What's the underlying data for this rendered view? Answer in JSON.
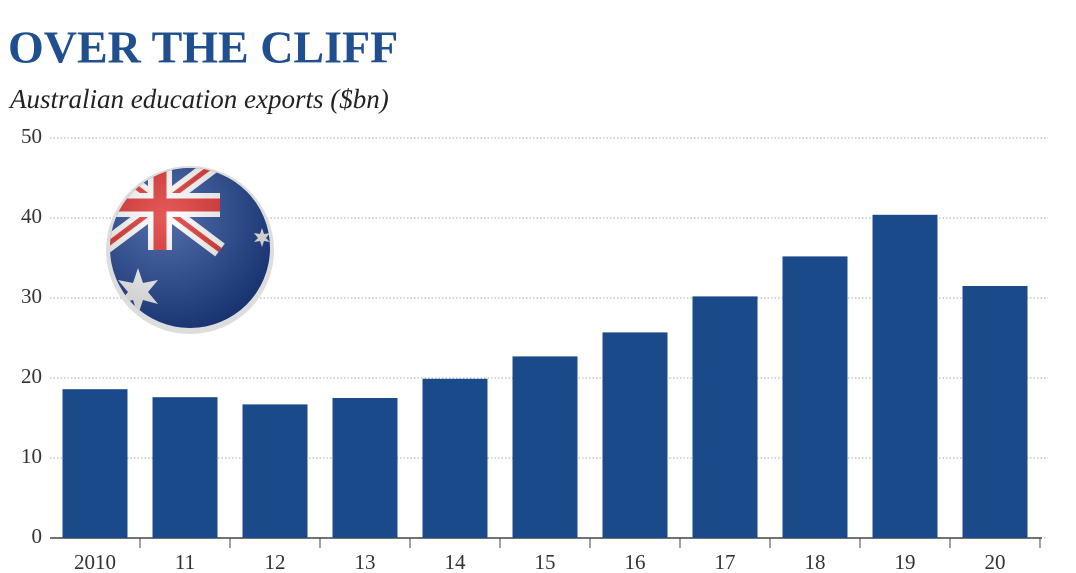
{
  "chart_data": {
    "type": "bar",
    "title": "OVER THE CLIFF",
    "subtitle": "Australian education exports ($bn)",
    "categories": [
      "2010",
      "11",
      "12",
      "13",
      "14",
      "15",
      "16",
      "17",
      "18",
      "19",
      "20"
    ],
    "values": [
      18.6,
      17.6,
      16.7,
      17.5,
      19.9,
      22.7,
      25.7,
      30.2,
      35.2,
      40.4,
      31.5
    ],
    "color": "#1b4a8a",
    "ylim": [
      0,
      50
    ],
    "yticks": [
      0,
      10,
      20,
      30,
      40,
      50
    ],
    "grid": true
  }
}
